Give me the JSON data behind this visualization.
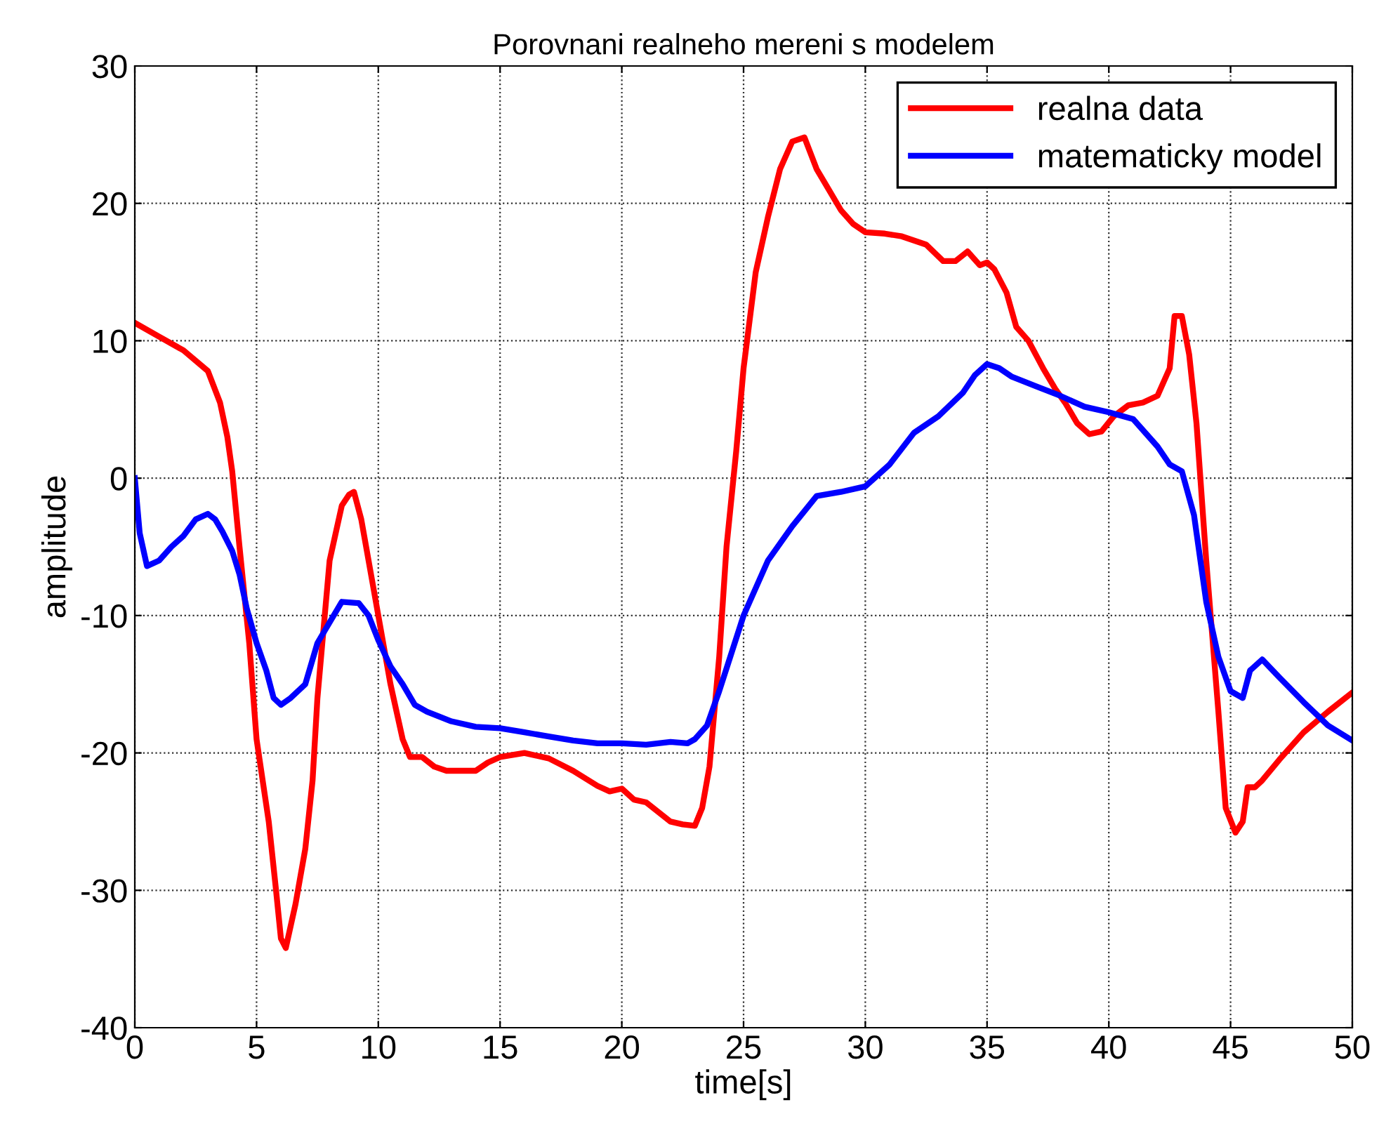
{
  "chart_data": {
    "type": "line",
    "title": "Porovnani realneho mereni s modelem",
    "xlabel": "time[s]",
    "ylabel": "amplitude",
    "xlim": [
      0,
      50
    ],
    "ylim": [
      -40,
      30
    ],
    "xticks": [
      0,
      5,
      10,
      15,
      20,
      25,
      30,
      35,
      40,
      45,
      50
    ],
    "yticks": [
      -40,
      -30,
      -20,
      -10,
      0,
      10,
      20,
      30
    ],
    "grid": true,
    "legend": "top right",
    "line_style": "solid",
    "marker": "none",
    "series": [
      {
        "name": "realna data",
        "color": "#ff0000",
        "x": [
          0,
          1,
          2,
          3,
          3.5,
          3.8,
          4,
          4.3,
          4.7,
          5,
          5.5,
          5.8,
          6,
          6.2,
          6.6,
          7,
          7.3,
          7.5,
          7.8,
          8,
          8.5,
          8.8,
          9,
          9.3,
          9.7,
          10,
          10.5,
          11,
          11.3,
          11.8,
          12.3,
          12.8,
          14,
          14.5,
          15,
          16,
          17,
          18,
          19,
          19.5,
          20,
          20.5,
          21,
          22,
          22.5,
          23,
          23.3,
          23.6,
          24,
          24.3,
          24.7,
          25,
          25.5,
          26,
          26.5,
          27,
          27.5,
          28,
          28.5,
          29,
          29.5,
          30,
          30.8,
          31.5,
          32.5,
          33.2,
          33.7,
          34.2,
          34.7,
          35,
          35.3,
          35.8,
          36.2,
          36.7,
          37.3,
          37.8,
          38.2,
          38.7,
          39.2,
          39.7,
          40.2,
          40.8,
          41.4,
          42,
          42.5,
          42.7,
          43,
          43.3,
          43.6,
          44,
          44.5,
          44.8,
          45.2,
          45.5,
          45.7,
          46,
          46.3,
          47,
          48,
          49,
          50
        ],
        "values": [
          11.3,
          10.3,
          9.3,
          7.8,
          5.5,
          3,
          0.5,
          -5,
          -12,
          -19,
          -25,
          -30,
          -33.5,
          -34.2,
          -31,
          -27,
          -22,
          -16,
          -10,
          -6,
          -2,
          -1.2,
          -1,
          -3,
          -7,
          -10,
          -15,
          -19,
          -20.3,
          -20.3,
          -21,
          -21.3,
          -21.3,
          -20.7,
          -20.3,
          -20,
          -20.4,
          -21.3,
          -22.4,
          -22.8,
          -22.6,
          -23.4,
          -23.6,
          -25,
          -25.2,
          -25.3,
          -24,
          -21,
          -13,
          -5,
          2,
          8,
          15,
          19,
          22.5,
          24.5,
          24.8,
          22.5,
          21,
          19.5,
          18.5,
          17.9,
          17.8,
          17.6,
          17,
          15.8,
          15.8,
          16.5,
          15.5,
          15.7,
          15.2,
          13.5,
          11,
          10,
          8,
          6.5,
          5.5,
          4,
          3.2,
          3.4,
          4.5,
          5.3,
          5.5,
          6,
          8,
          11.8,
          11.8,
          9,
          4,
          -6,
          -17,
          -24,
          -25.8,
          -25,
          -22.5,
          -22.5,
          -22,
          -20.5,
          -18.5,
          -17,
          -15.6
        ]
      },
      {
        "name": "matematicky model",
        "color": "#0000ff",
        "x": [
          0,
          0.2,
          0.5,
          1,
          1.5,
          2,
          2.5,
          3,
          3.3,
          3.6,
          4,
          4.3,
          4.6,
          5,
          5.4,
          5.7,
          6,
          6.4,
          7,
          7.5,
          8,
          8.5,
          9.2,
          9.6,
          10,
          10.5,
          11,
          11.5,
          12,
          13,
          14,
          15,
          16,
          17,
          18,
          19,
          20,
          21,
          22,
          22.7,
          23,
          23.5,
          24,
          25,
          26,
          27,
          28,
          29,
          30,
          31,
          32,
          33,
          34,
          34.5,
          35,
          35.5,
          36,
          37,
          38,
          39,
          40,
          41,
          42,
          42.5,
          43,
          43.5,
          44,
          44.5,
          45,
          45.5,
          45.8,
          46.3,
          47,
          48,
          49,
          50
        ],
        "values": [
          0,
          -4,
          -6.4,
          -6,
          -5,
          -4.2,
          -3,
          -2.6,
          -3,
          -3.9,
          -5.3,
          -7,
          -9.5,
          -12,
          -14,
          -16,
          -16.5,
          -16,
          -15,
          -12,
          -10.5,
          -9,
          -9.1,
          -10,
          -11.8,
          -13.7,
          -15,
          -16.5,
          -17,
          -17.7,
          -18.1,
          -18.2,
          -18.5,
          -18.8,
          -19.1,
          -19.3,
          -19.3,
          -19.4,
          -19.2,
          -19.3,
          -19,
          -18,
          -15.5,
          -10,
          -6,
          -3.5,
          -1.3,
          -1,
          -0.6,
          1,
          3.3,
          4.5,
          6.2,
          7.5,
          8.3,
          8,
          7.4,
          6.7,
          6,
          5.2,
          4.8,
          4.3,
          2.3,
          1,
          0.5,
          -2.7,
          -9,
          -13,
          -15.5,
          -16,
          -14,
          -13.2,
          -14.5,
          -16.3,
          -18,
          -19.1
        ]
      }
    ]
  }
}
